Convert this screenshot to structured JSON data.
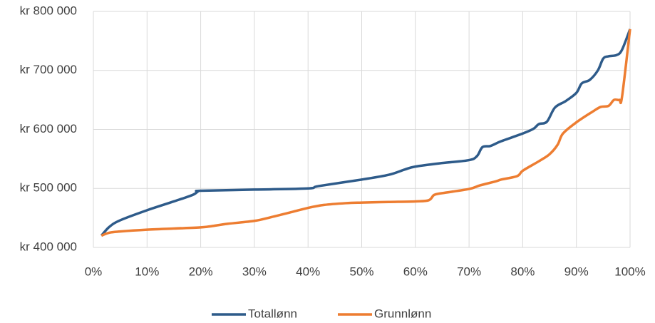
{
  "chart_data": {
    "type": "line",
    "xlim": [
      0,
      100
    ],
    "xticks": [
      {
        "value": 0,
        "label": "0%"
      },
      {
        "value": 10,
        "label": "10%"
      },
      {
        "value": 20,
        "label": "20%"
      },
      {
        "value": 30,
        "label": "30%"
      },
      {
        "value": 40,
        "label": "40%"
      },
      {
        "value": 50,
        "label": "50%"
      },
      {
        "value": 60,
        "label": "60%"
      },
      {
        "value": 70,
        "label": "70%"
      },
      {
        "value": 80,
        "label": "80%"
      },
      {
        "value": 90,
        "label": "90%"
      },
      {
        "value": 100,
        "label": "100%"
      }
    ],
    "ylim": [
      400000,
      800000
    ],
    "yticks": [
      {
        "value": 400000,
        "label": "kr 400 000"
      },
      {
        "value": 500000,
        "label": "kr 500 000"
      },
      {
        "value": 600000,
        "label": "kr 600 000"
      },
      {
        "value": 700000,
        "label": "kr 700 000"
      },
      {
        "value": 800000,
        "label": "kr 800 000"
      }
    ],
    "grid": true,
    "legend": "bottom",
    "series": [
      {
        "name": "Totallønn",
        "color": "#2e5b8a",
        "x": [
          1.5,
          3,
          5,
          10,
          15,
          18.5,
          19.5,
          20,
          30,
          40,
          42,
          50,
          55,
          58,
          60,
          65,
          70,
          71.5,
          72.5,
          74,
          76,
          80,
          82,
          83,
          84.5,
          86,
          88,
          90,
          91,
          92.5,
          94,
          95,
          96,
          97.5,
          98.5,
          100
        ],
        "values": [
          420000,
          435000,
          446000,
          463000,
          478000,
          489000,
          495000,
          496000,
          498000,
          500000,
          504000,
          515000,
          523000,
          532000,
          537000,
          543000,
          548000,
          555000,
          570000,
          572000,
          580000,
          593000,
          601000,
          609000,
          613000,
          637000,
          648000,
          662000,
          678000,
          684000,
          700000,
          720000,
          724000,
          726000,
          735000,
          770000
        ]
      },
      {
        "name": "Grunnlønn",
        "color": "#ed7d31",
        "x": [
          1.5,
          3,
          5,
          10,
          15,
          20,
          22,
          25,
          30,
          33,
          37,
          40,
          43,
          47,
          50,
          55,
          60,
          62.5,
          63.5,
          65,
          70,
          72,
          75,
          76,
          79,
          80,
          83,
          85,
          86.5,
          87.5,
          90,
          93,
          94.5,
          96,
          97,
          98,
          98.5,
          100
        ],
        "values": [
          420000,
          425000,
          427000,
          430000,
          432000,
          434000,
          436000,
          440000,
          445000,
          451000,
          460000,
          467000,
          472000,
          475000,
          476000,
          477000,
          478000,
          480000,
          489000,
          492000,
          499000,
          505000,
          512000,
          515000,
          521000,
          530000,
          546000,
          558000,
          574000,
          593000,
          612000,
          630000,
          638000,
          640000,
          650000,
          650000,
          655000,
          770000
        ]
      }
    ]
  }
}
